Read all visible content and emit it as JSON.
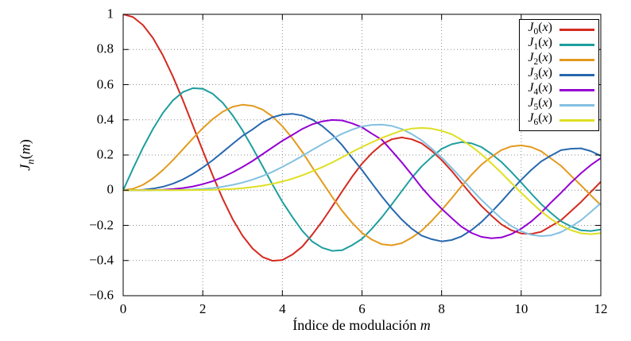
{
  "chart_data": {
    "type": "line",
    "title": "",
    "xlabel_text": "Índice de modulación ",
    "xlabel_var": "m",
    "ylabel_main": "J",
    "ylabel_sub": "n",
    "ylabel_open": "(",
    "ylabel_var": "m",
    "ylabel_close": ")",
    "xlim": [
      0,
      12
    ],
    "ylim": [
      -0.6,
      1
    ],
    "grid": "dotted",
    "legend_position": "top-right",
    "x_ticks": [
      {
        "v": 0,
        "label": "0"
      },
      {
        "v": 2,
        "label": "2"
      },
      {
        "v": 4,
        "label": "4"
      },
      {
        "v": 6,
        "label": "6"
      },
      {
        "v": 8,
        "label": "8"
      },
      {
        "v": 10,
        "label": "10"
      },
      {
        "v": 12,
        "label": "12"
      }
    ],
    "y_ticks": [
      {
        "v": 1,
        "label": "1"
      },
      {
        "v": 0.8,
        "label": "0.8"
      },
      {
        "v": 0.6,
        "label": "0.6"
      },
      {
        "v": 0.4,
        "label": "0.4"
      },
      {
        "v": 0.2,
        "label": "0.2"
      },
      {
        "v": 0,
        "label": "0"
      },
      {
        "v": -0.2,
        "label": "−0.2"
      },
      {
        "v": -0.4,
        "label": "−0.4"
      },
      {
        "v": -0.6,
        "label": "−0.6"
      }
    ],
    "x": [
      0,
      0.25,
      0.5,
      0.75,
      1,
      1.25,
      1.5,
      1.75,
      2,
      2.25,
      2.5,
      2.75,
      3,
      3.25,
      3.5,
      3.75,
      4,
      4.25,
      4.5,
      4.75,
      5,
      5.25,
      5.5,
      5.75,
      6,
      6.25,
      6.5,
      6.75,
      7,
      7.25,
      7.5,
      7.75,
      8,
      8.25,
      8.5,
      8.75,
      9,
      9.25,
      9.5,
      9.75,
      10,
      10.25,
      10.5,
      10.75,
      11,
      11.25,
      11.5,
      11.75,
      12
    ],
    "series": [
      {
        "label": "J0(x)",
        "label_main": "J",
        "label_sub": "0",
        "label_var": "x",
        "color": "#d42a20",
        "values": [
          1,
          0.9844,
          0.9385,
          0.8642,
          0.7652,
          0.6459,
          0.5118,
          0.369,
          0.2239,
          0.0834,
          -0.0484,
          -0.1641,
          -0.2601,
          -0.3315,
          -0.3801,
          -0.4014,
          -0.3971,
          -0.3664,
          -0.3205,
          -0.2528,
          -0.1776,
          -0.0938,
          -0.0068,
          0.076,
          0.1506,
          0.2112,
          0.2601,
          0.2897,
          0.3001,
          0.2893,
          0.2663,
          0.2238,
          0.1717,
          0.11,
          0.0419,
          -0.0261,
          -0.0903,
          -0.1443,
          -0.1939,
          -0.2277,
          -0.2459,
          -0.249,
          -0.2366,
          -0.2039,
          -0.1712,
          -0.1195,
          -0.0677,
          -0.0097,
          0.0477
        ]
      },
      {
        "label": "J1(x)",
        "label_main": "J",
        "label_sub": "1",
        "label_var": "x",
        "color": "#1f9e9e",
        "values": [
          0,
          0.124,
          0.2423,
          0.3492,
          0.4401,
          0.5106,
          0.5579,
          0.58,
          0.5767,
          0.5479,
          0.4971,
          0.4257,
          0.3391,
          0.2408,
          0.1374,
          0.0329,
          -0.066,
          -0.152,
          -0.2311,
          -0.292,
          -0.3276,
          -0.3452,
          -0.3414,
          -0.313,
          -0.2767,
          -0.2188,
          -0.1538,
          -0.08,
          -0.0047,
          0.0703,
          0.1352,
          0.188,
          0.2346,
          0.2609,
          0.2731,
          0.2669,
          0.2453,
          0.2065,
          0.1613,
          0.104,
          0.0435,
          -0.0191,
          -0.0789,
          -0.13,
          -0.1768,
          -0.206,
          -0.2284,
          -0.2322,
          -0.2234
        ]
      },
      {
        "label": "J2(x)",
        "label_main": "J",
        "label_sub": "2",
        "label_var": "x",
        "color": "#e39a1d",
        "values": [
          0,
          0.0078,
          0.0306,
          0.067,
          0.1149,
          0.1711,
          0.2321,
          0.2941,
          0.3528,
          0.4043,
          0.4461,
          0.4737,
          0.4861,
          0.48,
          0.4586,
          0.4193,
          0.3641,
          0.2949,
          0.2178,
          0.1299,
          0.0466,
          -0.0377,
          -0.1173,
          -0.1849,
          -0.2429,
          -0.2812,
          -0.3074,
          -0.3134,
          -0.3014,
          -0.2699,
          -0.2303,
          -0.1753,
          -0.113,
          -0.0467,
          0.0223,
          0.0871,
          0.1448,
          0.189,
          0.2279,
          0.249,
          0.2546,
          0.2453,
          0.2216,
          0.1797,
          0.1391,
          0.0829,
          0.028,
          -0.0298,
          -0.0849
        ]
      },
      {
        "label": "J3(x)",
        "label_main": "J",
        "label_sub": "3",
        "label_var": "x",
        "color": "#2868ae",
        "values": [
          0,
          0.0003,
          0.0026,
          0.0087,
          0.0196,
          0.0369,
          0.061,
          0.0922,
          0.1289,
          0.1708,
          0.2166,
          0.2633,
          0.3091,
          0.3455,
          0.3868,
          0.4143,
          0.4301,
          0.4341,
          0.4247,
          0.4014,
          0.3648,
          0.3165,
          0.2561,
          0.1844,
          0.1148,
          0.0388,
          -0.0353,
          -0.1057,
          -0.1676,
          -0.2192,
          -0.2581,
          -0.2785,
          -0.2911,
          -0.2835,
          -0.2626,
          -0.2271,
          -0.1809,
          -0.1248,
          -0.0653,
          -0.0018,
          0.0584,
          0.1148,
          0.1633,
          0.1969,
          0.2274,
          0.2355,
          0.2381,
          0.2221,
          0.1951
        ]
      },
      {
        "label": "J4(x)",
        "label_main": "J",
        "label_sub": "4",
        "label_var": "x",
        "color": "#9400d3",
        "values": [
          0,
          0,
          0.0002,
          0.0008,
          0.0025,
          0.0059,
          0.0118,
          0.0209,
          0.034,
          0.0512,
          0.0738,
          0.1008,
          0.132,
          0.166,
          0.2044,
          0.243,
          0.2811,
          0.314,
          0.3484,
          0.3745,
          0.3912,
          0.3994,
          0.3967,
          0.38,
          0.3576,
          0.321,
          0.2867,
          0.223,
          0.1578,
          0.0885,
          0.015,
          -0.048,
          -0.1054,
          -0.158,
          -0.2077,
          -0.2428,
          -0.2655,
          -0.273,
          -0.2691,
          -0.2501,
          -0.2196,
          -0.1781,
          -0.1283,
          -0.0698,
          -0.0151,
          0.0427,
          0.0962,
          0.1432,
          0.1825
        ]
      },
      {
        "label": "J5(x)",
        "label_main": "J",
        "label_sub": "5",
        "label_var": "x",
        "color": "#84c1e0",
        "values": [
          0,
          0,
          0,
          0.0001,
          0.0002,
          0.0006,
          0.0018,
          0.0037,
          0.007,
          0.012,
          0.0195,
          0.0299,
          0.043,
          0.0605,
          0.0804,
          0.1041,
          0.1321,
          0.1625,
          0.1947,
          0.229,
          0.2611,
          0.2921,
          0.3209,
          0.344,
          0.3621,
          0.3714,
          0.3729,
          0.3652,
          0.3479,
          0.319,
          0.2835,
          0.237,
          0.1858,
          0.1275,
          0.0671,
          0.0052,
          -0.055,
          -0.109,
          -0.1613,
          -0.2034,
          -0.2341,
          -0.2538,
          -0.261,
          -0.2571,
          -0.2383,
          -0.208,
          -0.1712,
          -0.1235,
          -0.0735
        ]
      },
      {
        "label": "J6(x)",
        "label_main": "J",
        "label_sub": "6",
        "label_var": "x",
        "color": "#dfdf22",
        "values": [
          0,
          0,
          0,
          0,
          0,
          0.0001,
          0.0002,
          0.0005,
          0.0012,
          0.0023,
          0.0042,
          0.0072,
          0.0114,
          0.0174,
          0.0254,
          0.0359,
          0.0491,
          0.0652,
          0.0843,
          0.107,
          0.131,
          0.157,
          0.1868,
          0.217,
          0.2458,
          0.2722,
          0.2965,
          0.319,
          0.3392,
          0.3501,
          0.3541,
          0.3501,
          0.3376,
          0.3183,
          0.2866,
          0.2487,
          0.2043,
          0.153,
          0.0993,
          0.042,
          -0.0145,
          -0.069,
          -0.1203,
          -0.164,
          -0.2016,
          -0.227,
          -0.245,
          -0.25,
          -0.2437
        ]
      }
    ]
  }
}
